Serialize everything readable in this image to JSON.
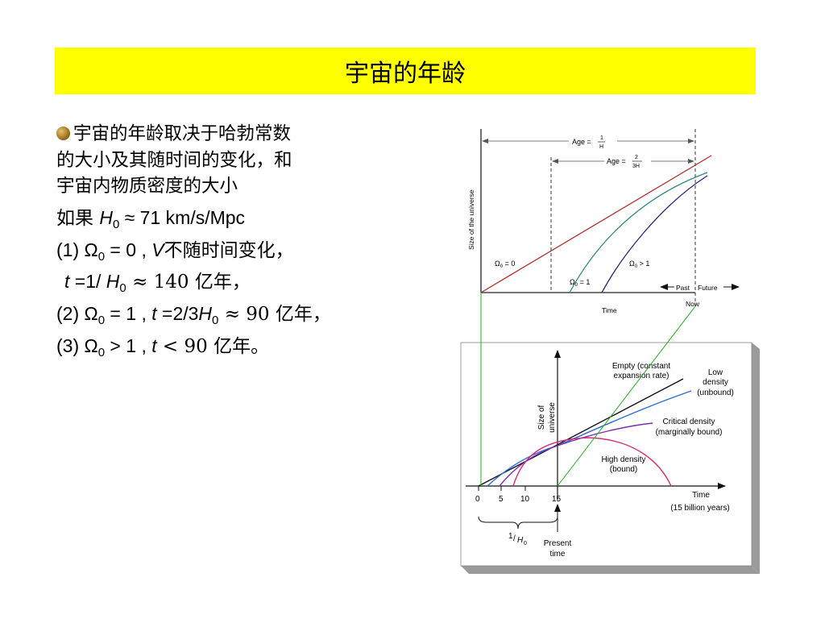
{
  "title": "宇宙的年龄",
  "bullet": {
    "line1": "宇宙的年龄取决于哈勃常数",
    "line2": "的大小及其随时间的变化，和",
    "line3": "宇宙内物质密度的大小"
  },
  "lines": {
    "l1_pre": "如果 ",
    "l1_h": "H",
    "l1_sub": "0",
    "l1_post": " ≈ 71 km/s/Mpc",
    "l2_pre": "(1) Ω",
    "l2_sub": "0",
    "l2_mid": " = 0 , ",
    "l2_v": "V",
    "l2_post": "不随时间变化，",
    "l3_t": "t",
    "l3_mid": " =1/ ",
    "l3_h": "H",
    "l3_sub": "0",
    "l3_post": " ≈ 140 亿年，",
    "l4_pre": "(2) Ω",
    "l4_sub": "0",
    "l4_mid": " = 1 , ",
    "l4_t": "t",
    "l4_mid2": " =2/3",
    "l4_h": "H",
    "l4_sub2": "0",
    "l4_post": " ≈ 90 亿年，",
    "l5_pre": "(3) Ω",
    "l5_sub": "0",
    "l5_mid": " > 1 , ",
    "l5_t": "t",
    "l5_post": " < 90 亿年。"
  },
  "top_figure": {
    "age1_prefix": "Age = ",
    "age1_num": "1",
    "age1_den": "H",
    "age2_prefix": "Age = ",
    "age2_num": "2",
    "age2_den": "3H",
    "ylabel": "Size of the universe",
    "omega0": "Ω",
    "omega0_sub": "0",
    "omega0_rest": " = 0",
    "omega1": "Ω",
    "omega1_sub": "0",
    "omega1_rest": " = 1",
    "omega_gt": "Ω",
    "omega_gt_sub": "0",
    "omega_gt_rest": " > 1",
    "past": "Past",
    "future": "Future",
    "now": "Now",
    "xlabel": "Time",
    "colors": {
      "empty": "#b03030",
      "critical": "#2e8a78",
      "closed": "#302070"
    }
  },
  "bottom_figure": {
    "ylabel1": "Size of",
    "ylabel2": "universe",
    "empty1": "Empty (constant",
    "empty2": "expansion rate)",
    "low1": "Low",
    "low2": "density",
    "low3": "(unbound)",
    "crit1": "Critical density",
    "crit2": "(marginally bound)",
    "high1": "High density",
    "high2": "(bound)",
    "xlabel1": "Time",
    "xlabel2": "(15 billion years)",
    "ticks": [
      "0",
      "5",
      "10",
      "15"
    ],
    "hubble_num": "1",
    "hubble_den": "H",
    "hubble_sub": "0",
    "present1": "Present",
    "present2": "time",
    "colors": {
      "empty": "#111111",
      "low": "#2a6fd6",
      "critical": "#7b2fa8",
      "high": "#d0307a",
      "connector": "#22aa22",
      "panel_shadow": "#9a9a9a"
    }
  }
}
